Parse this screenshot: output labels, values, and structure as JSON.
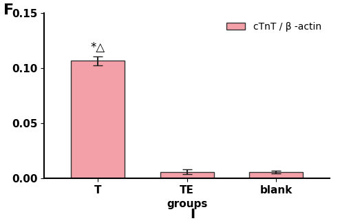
{
  "chart_data": {
    "type": "bar",
    "x_label": "groups",
    "categories": [
      "T",
      "TE",
      "blank"
    ],
    "series": [
      {
        "name": "cTnT / β -actin",
        "color": "#f4a0a8",
        "values": [
          0.107,
          0.006,
          0.006
        ],
        "errors": [
          0.004,
          0.002,
          0.0012
        ]
      }
    ],
    "annotations": [
      {
        "text": "*△",
        "category": "T"
      }
    ],
    "panel_labels": [
      "F",
      "I"
    ],
    "ylim": [
      0,
      0.15
    ],
    "yticks": [
      {
        "value": 0,
        "label": "0.00"
      },
      {
        "value": 0.05,
        "label": "0.05"
      },
      {
        "value": 0.1,
        "label": "0.10"
      },
      {
        "value": 0.15,
        "label": "0.15"
      }
    ],
    "legend": "upper right",
    "grid": false
  }
}
